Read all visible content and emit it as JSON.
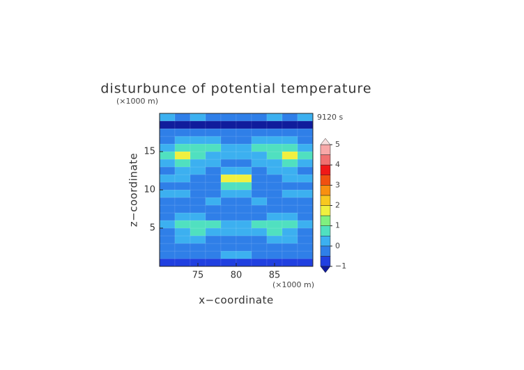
{
  "chart_data": {
    "type": "contour",
    "title": "disturbunce of potential temperature",
    "y_unit": "(×1000 m)",
    "x_unit": "(×1000 m)",
    "time_label": "9120 s",
    "x_label": "x−coordinate",
    "y_label": "z−coordinate",
    "xlim": [
      70,
      90
    ],
    "ylim": [
      0,
      20
    ],
    "xticks": [
      75,
      80,
      85
    ],
    "yticks": [
      5,
      10,
      15
    ],
    "x": [
      71,
      73,
      75,
      77,
      79,
      81,
      83,
      85,
      87,
      89
    ],
    "y": [
      0.5,
      1.5,
      2.5,
      3.5,
      4.5,
      5.5,
      6.5,
      7.5,
      8.5,
      9.5,
      10.5,
      11.5,
      12.5,
      13.5,
      14.5,
      15.5,
      16.5,
      17.5,
      18.5,
      19.5
    ],
    "z": [
      [
        -0.8,
        -0.8,
        -0.8,
        -0.8,
        -0.8,
        -0.8,
        -0.8,
        -0.8,
        -0.8,
        -0.8
      ],
      [
        -0.2,
        -0.2,
        -0.2,
        -0.2,
        0.3,
        0.3,
        -0.2,
        -0.2,
        -0.2,
        -0.2
      ],
      [
        -0.2,
        -0.2,
        -0.2,
        -0.2,
        -0.2,
        -0.2,
        -0.2,
        -0.2,
        -0.2,
        -0.2
      ],
      [
        -0.2,
        0.3,
        0.3,
        -0.2,
        -0.2,
        -0.2,
        -0.2,
        0.3,
        0.3,
        -0.2
      ],
      [
        -0.2,
        0.3,
        0.7,
        0.3,
        0.3,
        0.3,
        0.3,
        0.7,
        0.3,
        -0.2
      ],
      [
        0.3,
        0.7,
        0.7,
        0.7,
        0.3,
        0.3,
        0.7,
        0.7,
        0.7,
        0.3
      ],
      [
        -0.2,
        0.3,
        0.3,
        -0.2,
        -0.2,
        -0.2,
        -0.2,
        0.3,
        0.3,
        -0.2
      ],
      [
        -0.2,
        -0.2,
        -0.2,
        -0.2,
        -0.2,
        -0.2,
        -0.2,
        -0.2,
        -0.2,
        -0.2
      ],
      [
        -0.2,
        -0.2,
        -0.2,
        0.3,
        -0.2,
        -0.2,
        0.3,
        -0.2,
        -0.2,
        -0.2
      ],
      [
        0.3,
        0.3,
        -0.2,
        -0.2,
        0.3,
        0.3,
        -0.2,
        -0.2,
        0.3,
        0.3
      ],
      [
        -0.2,
        -0.2,
        -0.2,
        -0.2,
        0.7,
        0.7,
        -0.2,
        -0.2,
        -0.2,
        -0.2
      ],
      [
        0.3,
        0.3,
        -0.2,
        -0.2,
        1.7,
        1.7,
        -0.2,
        -0.2,
        0.3,
        0.3
      ],
      [
        -0.2,
        0.3,
        0.3,
        -0.2,
        0.3,
        0.3,
        -0.2,
        0.3,
        0.3,
        -0.2
      ],
      [
        0.3,
        0.7,
        0.3,
        0.3,
        -0.2,
        -0.2,
        0.3,
        0.3,
        0.7,
        0.3
      ],
      [
        0.7,
        1.7,
        0.7,
        0.3,
        0.3,
        0.3,
        0.3,
        0.7,
        1.7,
        0.7
      ],
      [
        0.3,
        0.7,
        0.7,
        0.7,
        0.3,
        0.3,
        0.7,
        0.7,
        0.7,
        0.3
      ],
      [
        -0.2,
        0.3,
        0.3,
        0.3,
        -0.2,
        -0.2,
        0.3,
        0.3,
        0.3,
        -0.2
      ],
      [
        -0.2,
        -0.2,
        -0.2,
        -0.2,
        -0.2,
        -0.2,
        -0.2,
        -0.2,
        -0.2,
        -0.2
      ],
      [
        -1.2,
        -1.2,
        -1.2,
        -1.2,
        -1.2,
        -1.2,
        -1.2,
        -1.2,
        -1.2,
        -1.2
      ],
      [
        0.3,
        -0.2,
        0.3,
        -0.2,
        -0.2,
        -0.2,
        -0.2,
        0.3,
        -0.2,
        0.3
      ]
    ],
    "levels": [
      -1,
      -0.5,
      0,
      0.5,
      1,
      1.5,
      2,
      2.5,
      3,
      3.5,
      4,
      4.5,
      5
    ],
    "colors": [
      "#2040e0",
      "#2f7fe8",
      "#3cb0f0",
      "#50e0c0",
      "#80f080",
      "#f0f040",
      "#f8c820",
      "#f89010",
      "#f05010",
      "#f01818",
      "#f07070",
      "#f8a8a8"
    ],
    "under_color": "#101c9c",
    "over_color": "#f8dede",
    "colorbar_ticks": [
      {
        "value": -1,
        "label": "−1"
      },
      0,
      1,
      2,
      3,
      4,
      5
    ]
  }
}
